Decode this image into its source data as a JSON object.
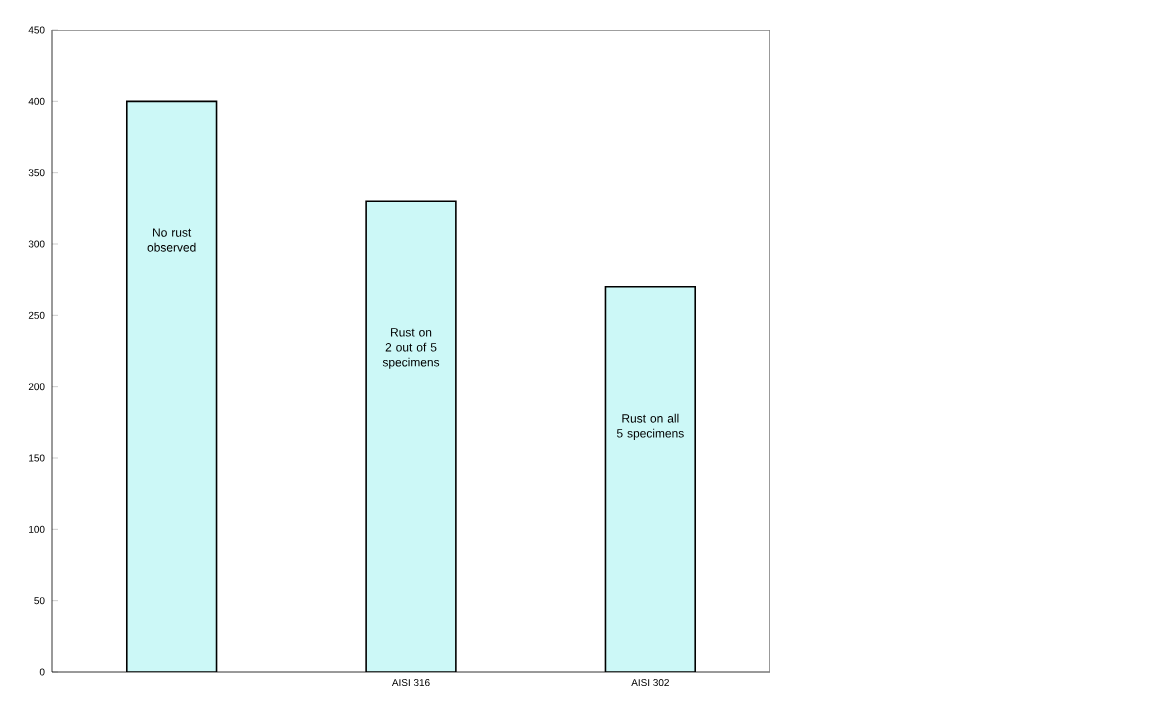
{
  "chart_data": {
    "type": "bar",
    "categories": [
      null,
      "AISI 316",
      "AISI 302"
    ],
    "values": [
      400,
      330,
      270
    ],
    "color": "#ccf8f7",
    "ylim": [
      0,
      450
    ],
    "yticks": [
      0,
      50,
      100,
      150,
      200,
      250,
      300,
      350,
      400,
      450
    ],
    "annotations": [
      "No rust observed",
      "Rust on 2 out of 5 specimens",
      "Rust on all 5 specimens"
    ]
  }
}
